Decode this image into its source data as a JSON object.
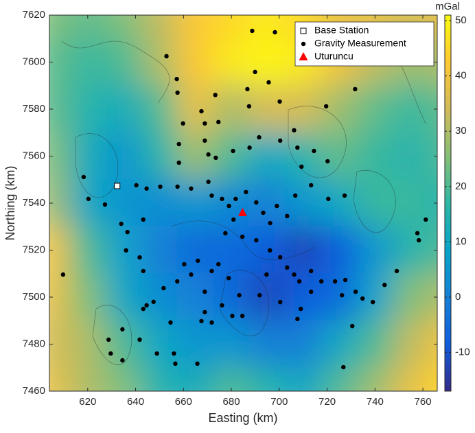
{
  "chart_data": {
    "type": "scatter",
    "xlabel": "Easting (km)",
    "ylabel": "Northing (km)",
    "xlim": [
      604,
      766
    ],
    "ylim": [
      7460,
      7620
    ],
    "xticks": [
      620,
      640,
      660,
      680,
      700,
      720,
      740,
      760
    ],
    "yticks": [
      7460,
      7480,
      7500,
      7520,
      7540,
      7560,
      7580,
      7600,
      7620
    ],
    "colormap": [
      "#352a87",
      "#0f5cdd",
      "#1481d6",
      "#06a4ca",
      "#2eb7a4",
      "#87bf77",
      "#d1bb59",
      "#fec832",
      "#f9fb0e"
    ],
    "zlim": [
      -17,
      51
    ],
    "colorbar": {
      "label": "mGal",
      "ticks": [
        -10,
        0,
        10,
        20,
        30,
        40,
        50
      ]
    },
    "field": {
      "x": [
        605,
        620,
        635,
        650,
        665,
        680,
        695,
        710,
        725,
        740,
        755,
        770
      ],
      "y": [
        7620,
        7600,
        7580,
        7560,
        7540,
        7520,
        7500,
        7480,
        7460
      ],
      "values": [
        [
          25,
          22,
          25,
          32,
          42,
          45,
          48,
          45,
          38,
          38,
          35,
          38
        ],
        [
          22,
          18,
          20,
          30,
          42,
          48,
          50,
          48,
          40,
          32,
          28,
          30
        ],
        [
          22,
          15,
          12,
          20,
          38,
          30,
          35,
          35,
          28,
          22,
          18,
          22
        ],
        [
          25,
          12,
          5,
          15,
          28,
          20,
          10,
          15,
          22,
          18,
          15,
          20
        ],
        [
          28,
          10,
          5,
          3,
          5,
          2,
          0,
          5,
          10,
          18,
          18,
          15
        ],
        [
          40,
          20,
          8,
          0,
          -5,
          -5,
          -8,
          -12,
          -8,
          5,
          15,
          20
        ],
        [
          38,
          25,
          10,
          3,
          0,
          -5,
          -12,
          -8,
          -5,
          8,
          25,
          30
        ],
        [
          35,
          30,
          20,
          10,
          5,
          5,
          0,
          0,
          10,
          20,
          32,
          40
        ],
        [
          38,
          30,
          25,
          15,
          12,
          20,
          15,
          10,
          20,
          28,
          38,
          45
        ]
      ]
    },
    "legend": "upper right",
    "series": [
      {
        "name": "Base Station",
        "marker": "square",
        "color": "#ffffff",
        "x": [
          632.3
        ],
        "y": [
          7547.3
        ]
      },
      {
        "name": "Gravity Measurement",
        "marker": "circle",
        "color": "#000000",
        "x": [
          688.7,
          698.2,
          652.9,
          657.2,
          689.9,
          686.7,
          695.6,
          657.5,
          673.3,
          687.4,
          700.2,
          719.6,
          731.7,
          667.5,
          659.8,
          668.9,
          674.6,
          658.1,
          658.1,
          668.9,
          670.4,
          673.5,
          680.7,
          687.6,
          691.6,
          700.4,
          706.2,
          707.6,
          714.5,
          709.3,
          720.2,
          618.3,
          620.3,
          627.2,
          634,
          636.6,
          640.3,
          644.6,
          650.3,
          657.5,
          663.2,
          670.4,
          671.8,
          676.1,
          679,
          681.8,
          686.1,
          690.4,
          693.3,
          696.2,
          699,
          703.3,
          706.7,
          713.3,
          720.5,
          727.3,
          680.9,
          677.5,
          684.6,
          690.4,
          696.1,
          700.4,
          703.3,
          706.2,
          708.4,
          713.3,
          717.6,
          723.3,
          727.6,
          731.9,
          734.8,
          739.1,
          744,
          749.1,
          757.7,
          758.3,
          761.2,
          713.3,
          709,
          707.6,
          726.2,
          726.8,
          730.5,
          643.2,
          641.7,
          643.2,
          647.5,
          644.6,
          651.7,
          657.4,
          660.3,
          663.2,
          666,
          668.9,
          671.8,
          674.6,
          678.9,
          683.3,
          680.4,
          676.1,
          668.9,
          667.5,
          671.8,
          654.6,
          648.9,
          656,
          641.7,
          634.5,
          629.6,
          628.7,
          634.5,
          656.6,
          665.8,
          609.7,
          636,
          643.2,
          684.6,
          694.7,
          700.4,
          691.8
        ],
        "y": [
          7613.3,
          7612.7,
          7602.5,
          7592.8,
          7595.8,
          7588.5,
          7591.4,
          7587,
          7586,
          7581.2,
          7583.2,
          7581.2,
          7588.5,
          7579.1,
          7573.9,
          7573.9,
          7574.5,
          7565.1,
          7557.2,
          7566.6,
          7560.7,
          7559.3,
          7562.2,
          7563.6,
          7568,
          7566.6,
          7571,
          7563.6,
          7562.2,
          7555.5,
          7557.8,
          7551.1,
          7541.8,
          7539.4,
          7531.2,
          7527.7,
          7547.6,
          7546.2,
          7547,
          7547,
          7546.2,
          7549.1,
          7543.2,
          7541.8,
          7538.8,
          7541.8,
          7544.7,
          7540.3,
          7535.9,
          7531.5,
          7538.8,
          7534.5,
          7543.2,
          7547.6,
          7541.8,
          7543.2,
          7533,
          7527.2,
          7525.7,
          7524.2,
          7519.9,
          7517,
          7512.6,
          7509.6,
          7506.7,
          7511.1,
          7506.7,
          7506.7,
          7507.3,
          7502.3,
          7499.4,
          7497.9,
          7505.2,
          7511.1,
          7527.2,
          7524.2,
          7533,
          7502.3,
          7495,
          7490.7,
          7500.8,
          7470.2,
          7487.7,
          7533,
          7516.9,
          7511.1,
          7498,
          7496.5,
          7503.8,
          7506.7,
          7514,
          7509.6,
          7515.5,
          7502.3,
          7511.1,
          7514,
          7508.1,
          7500.8,
          7492,
          7496.5,
          7493.6,
          7489.8,
          7489.2,
          7489.2,
          7476,
          7476,
          7481.9,
          7473.1,
          7476,
          7481.9,
          7486.3,
          7471.7,
          7471.7,
          7509.6,
          7519.9,
          7495,
          7492,
          7509.6,
          7497.9,
          7500.8
        ]
      },
      {
        "name": "Uturuncu",
        "marker": "triangle",
        "color": "#ff0000",
        "x": [
          684.7
        ],
        "y": [
          7535.9
        ]
      }
    ]
  }
}
